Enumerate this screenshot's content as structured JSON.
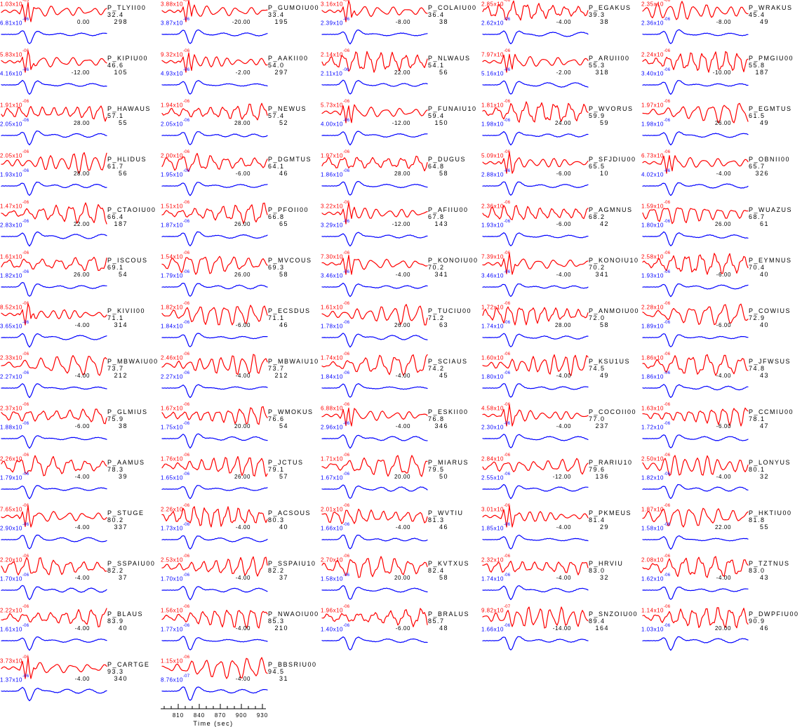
{
  "chart_data": {
    "type": "line",
    "layout": {
      "columns": 5,
      "rows": 14,
      "grid": false,
      "trace_colors": {
        "top": "#ff0000",
        "bottom": "#0000ff"
      },
      "text_color": "#000000"
    },
    "time_axis": {
      "label": "Time (sec)",
      "major_ticks": [
        810,
        840,
        870,
        900,
        930
      ],
      "minor_step": 10,
      "range": [
        785,
        935
      ]
    },
    "cells": [
      {
        "station": "P_TLYII00",
        "dist": "32.4",
        "az": "298",
        "top": "1.03x10-05",
        "bot": "6.81x10-06",
        "shift": "0.00"
      },
      {
        "station": "P_GUMOIU00",
        "dist": "33.4",
        "az": "195",
        "top": "3.88x10-06",
        "bot": "3.87x10-06",
        "shift": "-20.00"
      },
      {
        "station": "P_COLAIU00",
        "dist": "36.4",
        "az": "38",
        "top": "3.16x10-06",
        "bot": "2.39x10-06",
        "shift": "-8.00"
      },
      {
        "station": "P_EGAKUS",
        "dist": "39.3",
        "az": "38",
        "top": "2.85x10-06",
        "bot": "2.62x10-06",
        "shift": "-4.00"
      },
      {
        "station": "P_WRAKUS",
        "dist": "45.4",
        "az": "49",
        "top": "2.35x10-06",
        "bot": "2.36x10-06",
        "shift": "-8.00"
      },
      {
        "station": "P_KIPIU00",
        "dist": "46.6",
        "az": "105",
        "top": "5.83x10-06",
        "bot": "4.16x10-06",
        "shift": "-12.00"
      },
      {
        "station": "P_AAKII00",
        "dist": "54.0",
        "az": "297",
        "top": "9.32x10-06",
        "bot": "4.93x10-06",
        "shift": "-2.00"
      },
      {
        "station": "P_NLWAUS",
        "dist": "54.1",
        "az": "56",
        "top": "2.14x10-06",
        "bot": "2.11x10-06",
        "shift": "22.00"
      },
      {
        "station": "P_ARUII00",
        "dist": "55.3",
        "az": "318",
        "top": "7.97x10-06",
        "bot": "5.16x10-06",
        "shift": "-2.00"
      },
      {
        "station": "P_PMGIU00",
        "dist": "55.8",
        "az": "187",
        "top": "2.24x10-06",
        "bot": "3.40x10-06",
        "shift": "-10.00"
      },
      {
        "station": "P_HAWAUS",
        "dist": "57.1",
        "az": "55",
        "top": "1.91x10-06",
        "bot": "2.05x10-06",
        "shift": "28.00"
      },
      {
        "station": "P_NEWUS",
        "dist": "57.4",
        "az": "52",
        "top": "1.94x10-06",
        "bot": "2.05x10-06",
        "shift": "28.00"
      },
      {
        "station": "P_FUNAIU10",
        "dist": "59.4",
        "az": "150",
        "top": "5.73x10-06",
        "bot": "4.00x10-06",
        "shift": "-12.00"
      },
      {
        "station": "P_WVORUS",
        "dist": "59.9",
        "az": "59",
        "top": "1.81x10-06",
        "bot": "1.98x10-06",
        "shift": "24.00"
      },
      {
        "station": "P_EGMTUS",
        "dist": "61.5",
        "az": "49",
        "top": "1.97x10-06",
        "bot": "1.98x10-06",
        "shift": "26.00"
      },
      {
        "station": "P_HLIDUS",
        "dist": "61.7",
        "az": "56",
        "top": "2.05x10-06",
        "bot": "1.93x10-06",
        "shift": "28.00"
      },
      {
        "station": "P_DGMTUS",
        "dist": "64.1",
        "az": "46",
        "top": "2.00x10-06",
        "bot": "1.95x10-06",
        "shift": "-6.00"
      },
      {
        "station": "P_DUGUS",
        "dist": "64.8",
        "az": "58",
        "top": "1.97x10-06",
        "bot": "1.86x10-06",
        "shift": "28.00"
      },
      {
        "station": "P_SFJDIU00",
        "dist": "65.5",
        "az": "10",
        "top": "5.09x10-06",
        "bot": "2.88x10-06",
        "shift": "-6.00"
      },
      {
        "station": "P_OBNII00",
        "dist": "65.7",
        "az": "326",
        "top": "6.73x10-06",
        "bot": "4.02x10-06",
        "shift": "-4.00"
      },
      {
        "station": "P_CTAOIU00",
        "dist": "66.4",
        "az": "187",
        "top": "1.47x10-06",
        "bot": "2.83x10-06",
        "shift": "22.00"
      },
      {
        "station": "P_PFOII00",
        "dist": "66.8",
        "az": "65",
        "top": "1.51x10-06",
        "bot": "1.87x10-06",
        "shift": "26.00"
      },
      {
        "station": "P_AFIIU00",
        "dist": "67.8",
        "az": "143",
        "top": "3.22x10-06",
        "bot": "3.29x10-06",
        "shift": "-12.00"
      },
      {
        "station": "P_AGMNUS",
        "dist": "68.2",
        "az": "42",
        "top": "2.36x10-06",
        "bot": "1.93x10-06",
        "shift": "-6.00"
      },
      {
        "station": "P_WUAZUS",
        "dist": "68.7",
        "az": "61",
        "top": "1.59x10-06",
        "bot": "1.80x10-06",
        "shift": "26.00"
      },
      {
        "station": "P_ISCOUS",
        "dist": "69.1",
        "az": "54",
        "top": "1.61x10-06",
        "bot": "1.82x10-06",
        "shift": "26.00"
      },
      {
        "station": "P_MVCOUS",
        "dist": "69.3",
        "az": "58",
        "top": "1.54x10-06",
        "bot": "1.79x10-06",
        "shift": "26.00"
      },
      {
        "station": "P_KONOIU00",
        "dist": "70.2",
        "az": "341",
        "top": "7.30x10-06",
        "bot": "3.46x10-06",
        "shift": "-4.00"
      },
      {
        "station": "P_KONOIU10",
        "dist": "70.2",
        "az": "341",
        "top": "7.39x10-06",
        "bot": "3.46x10-06",
        "shift": "-4.00"
      },
      {
        "station": "P_EYMNUS",
        "dist": "70.4",
        "az": "40",
        "top": "2.58x10-06",
        "bot": "1.93x10-06",
        "shift": "-6.00"
      },
      {
        "station": "P_KIVII00",
        "dist": "71.1",
        "az": "314",
        "top": "8.52x10-06",
        "bot": "3.65x10-06",
        "shift": "-4.00"
      },
      {
        "station": "P_ECSDUS",
        "dist": "71.1",
        "az": "46",
        "top": "1.82x10-06",
        "bot": "1.84x10-06",
        "shift": "-6.00"
      },
      {
        "station": "P_TUCIU00",
        "dist": "71.2",
        "az": "63",
        "top": "1.61x10-06",
        "bot": "1.78x10-06",
        "shift": "26.00"
      },
      {
        "station": "P_ANMOIU00",
        "dist": "72.0",
        "az": "58",
        "top": "1.72x10-06",
        "bot": "1.74x10-06",
        "shift": "28.00"
      },
      {
        "station": "P_COWIUS",
        "dist": "72.9",
        "az": "40",
        "top": "2.28x10-06",
        "bot": "1.89x10-06",
        "shift": "-6.00"
      },
      {
        "station": "P_MBWAIU00",
        "dist": "73.7",
        "az": "212",
        "top": "2.33x10-06",
        "bot": "2.27x10-06",
        "shift": "-4.00"
      },
      {
        "station": "P_MBWAIU10",
        "dist": "73.7",
        "az": "212",
        "top": "2.46x10-06",
        "bot": "2.27x10-06",
        "shift": "-4.00"
      },
      {
        "station": "P_SCIAUS",
        "dist": "74.2",
        "az": "45",
        "top": "1.74x10-06",
        "bot": "1.84x10-06",
        "shift": "-4.00"
      },
      {
        "station": "P_KSU1US",
        "dist": "74.5",
        "az": "49",
        "top": "1.60x10-06",
        "bot": "1.80x10-06",
        "shift": "-4.00"
      },
      {
        "station": "P_JFWSUS",
        "dist": "74.8",
        "az": "43",
        "top": "1.86x10-06",
        "bot": "1.86x10-06",
        "shift": "-4.00"
      },
      {
        "station": "P_GLMIUS",
        "dist": "75.9",
        "az": "38",
        "top": "2.37x10-06",
        "bot": "1.88x10-06",
        "shift": "-6.00"
      },
      {
        "station": "P_WMOKUS",
        "dist": "76.6",
        "az": "54",
        "top": "1.67x10-06",
        "bot": "1.75x10-06",
        "shift": "20.00"
      },
      {
        "station": "P_ESKII00",
        "dist": "76.8",
        "az": "346",
        "top": "6.88x10-06",
        "bot": "2.96x10-06",
        "shift": "-4.00"
      },
      {
        "station": "P_COCOII00",
        "dist": "77.0",
        "az": "237",
        "top": "4.58x10-06",
        "bot": "2.30x10-06",
        "shift": "-4.00"
      },
      {
        "station": "P_CCMIU00",
        "dist": "78.1",
        "az": "47",
        "top": "1.63x10-06",
        "bot": "1.72x10-06",
        "shift": "-6.00"
      },
      {
        "station": "P_AAMUS",
        "dist": "78.3",
        "az": "39",
        "top": "2.26x10-06",
        "bot": "1.79x10-06",
        "shift": "-4.00"
      },
      {
        "station": "P_JCTUS",
        "dist": "79.1",
        "az": "57",
        "top": "1.76x10-06",
        "bot": "1.65x10-06",
        "shift": "26.00"
      },
      {
        "station": "P_MIARUS",
        "dist": "79.5",
        "az": "50",
        "top": "1.71x10-06",
        "bot": "1.67x10-06",
        "shift": "20.00"
      },
      {
        "station": "P_RARIU10",
        "dist": "79.6",
        "az": "136",
        "top": "2.84x10-06",
        "bot": "2.55x10-06",
        "shift": "-12.00"
      },
      {
        "station": "P_LONYUS",
        "dist": "80.1",
        "az": "32",
        "top": "2.50x10-06",
        "bot": "1.82x10-06",
        "shift": "-4.00"
      },
      {
        "station": "P_STUGE",
        "dist": "80.2",
        "az": "337",
        "top": "7.65x10-06",
        "bot": "2.90x10-06",
        "shift": "-4.00"
      },
      {
        "station": "P_ACSOUS",
        "dist": "80.3",
        "az": "40",
        "top": "2.26x10-06",
        "bot": "1.73x10-06",
        "shift": "-4.00"
      },
      {
        "station": "P_WVTIU",
        "dist": "81.3",
        "az": "46",
        "top": "2.01x10-06",
        "bot": "1.66x10-06",
        "shift": "-4.00"
      },
      {
        "station": "P_PKMEUS",
        "dist": "81.4",
        "az": "29",
        "top": "3.01x10-06",
        "bot": "1.85x10-06",
        "shift": "-4.00"
      },
      {
        "station": "P_HKTIU00",
        "dist": "81.8",
        "az": "55",
        "top": "1.87x10-06",
        "bot": "1.58x10-06",
        "shift": "22.00"
      },
      {
        "station": "P_SSPAIU00",
        "dist": "82.2",
        "az": "37",
        "top": "2.20x10-06",
        "bot": "1.70x10-06",
        "shift": "-4.00"
      },
      {
        "station": "P_SSPAIU10",
        "dist": "82.2",
        "az": "37",
        "top": "2.53x10-06",
        "bot": "1.70x10-06",
        "shift": "-4.00"
      },
      {
        "station": "P_KVTXUS",
        "dist": "82.4",
        "az": "58",
        "top": "2.70x10-06",
        "bot": "1.58x10-06",
        "shift": "20.00"
      },
      {
        "station": "P_HRVIU",
        "dist": "83.0",
        "az": "32",
        "top": "2.32x10-06",
        "bot": "1.74x10-06",
        "shift": "-4.00"
      },
      {
        "station": "P_TZTNUS",
        "dist": "83.0",
        "az": "43",
        "top": "2.08x10-06",
        "bot": "1.62x10-06",
        "shift": "-4.00"
      },
      {
        "station": "P_BLAUS",
        "dist": "83.9",
        "az": "40",
        "top": "2.22x10-06",
        "bot": "1.61x10-06",
        "shift": "-4.00"
      },
      {
        "station": "P_NWAOIU00",
        "dist": "85.3",
        "az": "210",
        "top": "1.56x10-06",
        "bot": "1.77x10-06",
        "shift": "-4.00"
      },
      {
        "station": "P_BRALUS",
        "dist": "85.7",
        "az": "48",
        "top": "1.96x10-06",
        "bot": "1.40x10-06",
        "shift": "-6.00"
      },
      {
        "station": "P_SNZOIU00",
        "dist": "89.4",
        "az": "164",
        "top": "9.82x10-07",
        "bot": "1.66x10-06",
        "shift": "-14.00"
      },
      {
        "station": "P_DWPFIU00",
        "dist": "90.9",
        "az": "46",
        "top": "1.14x10-06",
        "bot": "1.03x10-06",
        "shift": "20.00"
      },
      {
        "station": "P_CARTGE",
        "dist": "93.3",
        "az": "340",
        "top": "3.73x10-06",
        "bot": "1.37x10-06",
        "shift": "-4.00"
      },
      {
        "station": "P_BBSRIU00",
        "dist": "94.5",
        "az": "31",
        "top": "1.15x10-06",
        "bot": "8.76x10-07",
        "shift": "-4.00"
      }
    ]
  }
}
